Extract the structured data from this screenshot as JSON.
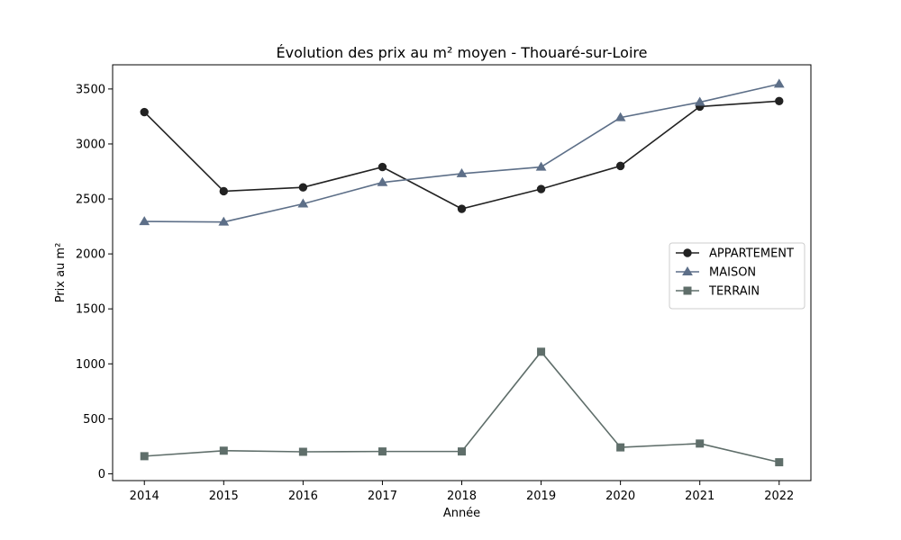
{
  "chart_data": {
    "type": "line",
    "title": "Évolution des prix au m² moyen - Thouaré-sur-Loire",
    "xlabel": "Année",
    "ylabel": "Prix au m²",
    "x": [
      2014,
      2015,
      2016,
      2017,
      2018,
      2019,
      2020,
      2021,
      2022
    ],
    "x_tick_labels": [
      "2014",
      "2015",
      "2016",
      "2017",
      "2018",
      "2019",
      "2020",
      "2021",
      "2022"
    ],
    "y_ticks": [
      0,
      500,
      1000,
      1500,
      2000,
      2500,
      3000,
      3500
    ],
    "y_tick_labels": [
      "0",
      "500",
      "1000",
      "1500",
      "2000",
      "2500",
      "3000",
      "3500"
    ],
    "xlim": [
      2013.6,
      2022.4
    ],
    "ylim": [
      -62,
      3720
    ],
    "grid": false,
    "legend_position": "center-right",
    "series": [
      {
        "name": "APPARTEMENT",
        "color": "#222222",
        "marker": "circle",
        "values": [
          3290,
          2570,
          2605,
          2790,
          2410,
          2590,
          2800,
          3340,
          3390
        ]
      },
      {
        "name": "MAISON",
        "color": "#5d6f88",
        "marker": "triangle",
        "values": [
          2295,
          2290,
          2455,
          2650,
          2730,
          2790,
          3240,
          3380,
          3545
        ]
      },
      {
        "name": "TERRAIN",
        "color": "#5f6e6a",
        "marker": "square",
        "values": [
          160,
          210,
          200,
          203,
          203,
          1110,
          240,
          275,
          105
        ]
      }
    ]
  }
}
